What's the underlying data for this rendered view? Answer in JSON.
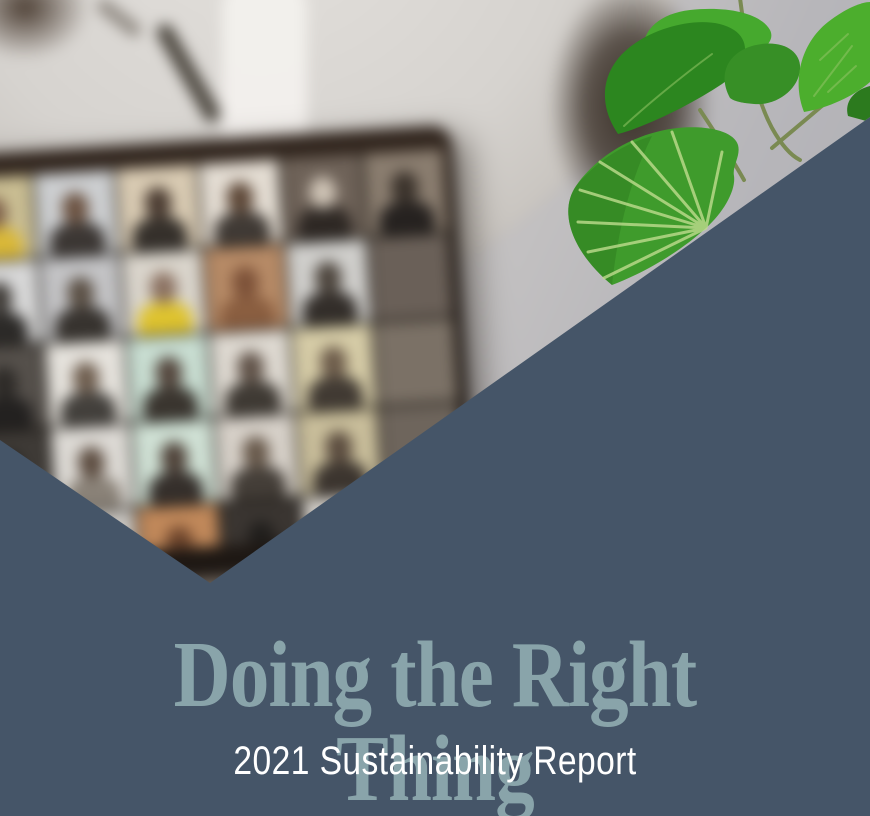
{
  "cover": {
    "title": "Doing the Right Thing",
    "subtitle": "2021 Sustainability Report"
  },
  "colors": {
    "page-bg": "#455568",
    "title-color": "#89a4aa",
    "subtitle-color": "#ffffff",
    "wall": "#c8c5c2",
    "wall-dark": "#a9aab0",
    "clock-face": "#d6d3cf",
    "clock-rim": "#42372e",
    "bezel": "#241d18",
    "screen-bg": "#16130f",
    "leaf-main": "#3f9b2c",
    "leaf-dark": "#2c861f",
    "leaf-bright": "#4cae2d",
    "vein": "#bfdc8e",
    "stem": "#7a8a52"
  },
  "photo": {
    "name": "blurred-laptop-video-conference-with-plant-and-wall-clock",
    "video_grid": {
      "rows": [
        [
          {
            "b": "#c9bd92",
            "h": "#7d5f48",
            "s": "#d9b838"
          },
          {
            "b": "#ccced0",
            "h": "#6b5241",
            "s": "#3c3734"
          },
          {
            "b": "#d8cab2",
            "h": "#4a3b31",
            "s": "#35302b"
          },
          {
            "b": "#e3dcd2",
            "h": "#5c4636",
            "s": "#403a35"
          },
          {
            "b": "#6e6258",
            "h": "#cfc4b6",
            "s": "#2e2824"
          },
          {
            "b": "#8a7d6f",
            "h": "#3a322b",
            "s": "#262220"
          }
        ],
        [
          {
            "b": "#d7d7d7",
            "h": "#3f3b37",
            "s": "#2c2a28"
          },
          {
            "b": "#c3c3c5",
            "h": "#5a4f44",
            "s": "#37332f"
          },
          {
            "b": "#d9d4cb",
            "h": "#8a7060",
            "s": "#dec32f"
          },
          {
            "b": "#b68a66",
            "h": "#7c5138",
            "s": "#8a5e40"
          },
          {
            "b": "#cfcecb",
            "h": "#4c443c",
            "s": "#332e2a"
          },
          {
            "b": "#6a6058",
            "h": null,
            "s": null
          }
        ],
        [
          {
            "b": "#55504b",
            "h": "#2d2a27",
            "s": "#232120"
          },
          {
            "b": "#e5e2dc",
            "h": "#6d5c4d",
            "s": "#43403c"
          },
          {
            "b": "#c8ddd1",
            "h": "#53453c",
            "s": "#3a352f"
          },
          {
            "b": "#ddd8d0",
            "h": "#5f5147",
            "s": "#3f3a34"
          },
          {
            "b": "#d5cba6",
            "h": "#6b5a49",
            "s": "#413a33"
          },
          {
            "b": "#7b7166",
            "h": null,
            "s": null
          }
        ],
        [
          {
            "b": "#3e3a36",
            "h": "#23211f",
            "s": "#1a1918"
          },
          {
            "b": "#dcd9d4",
            "h": "#5c4c40",
            "s": "#8a8278"
          },
          {
            "b": "#cfe0d4",
            "h": "#4e4138",
            "s": "#352f2b"
          },
          {
            "b": "#d6d0c8",
            "h": "#665749",
            "s": "#443e38"
          },
          {
            "b": "#c8bd9a",
            "h": "#5a4b3e",
            "s": "#3c352f"
          },
          {
            "b": "#6e655c",
            "h": null,
            "s": null
          }
        ],
        [
          {
            "b": "#2e2a27",
            "h": null,
            "s": null
          },
          {
            "b": "#c9c6c1",
            "h": "#4a423b",
            "s": "#b2392c"
          },
          {
            "b": "#c0885a",
            "h": "#6e452c",
            "s": "#8a5a38"
          },
          {
            "b": "#3a3531",
            "h": "#201e1c",
            "s": "#171615"
          },
          {
            "b": "#d2cec8",
            "h": "#55483d",
            "s": "#3b3530"
          },
          {
            "b": "#5f574f",
            "h": null,
            "s": null
          }
        ]
      ]
    }
  }
}
